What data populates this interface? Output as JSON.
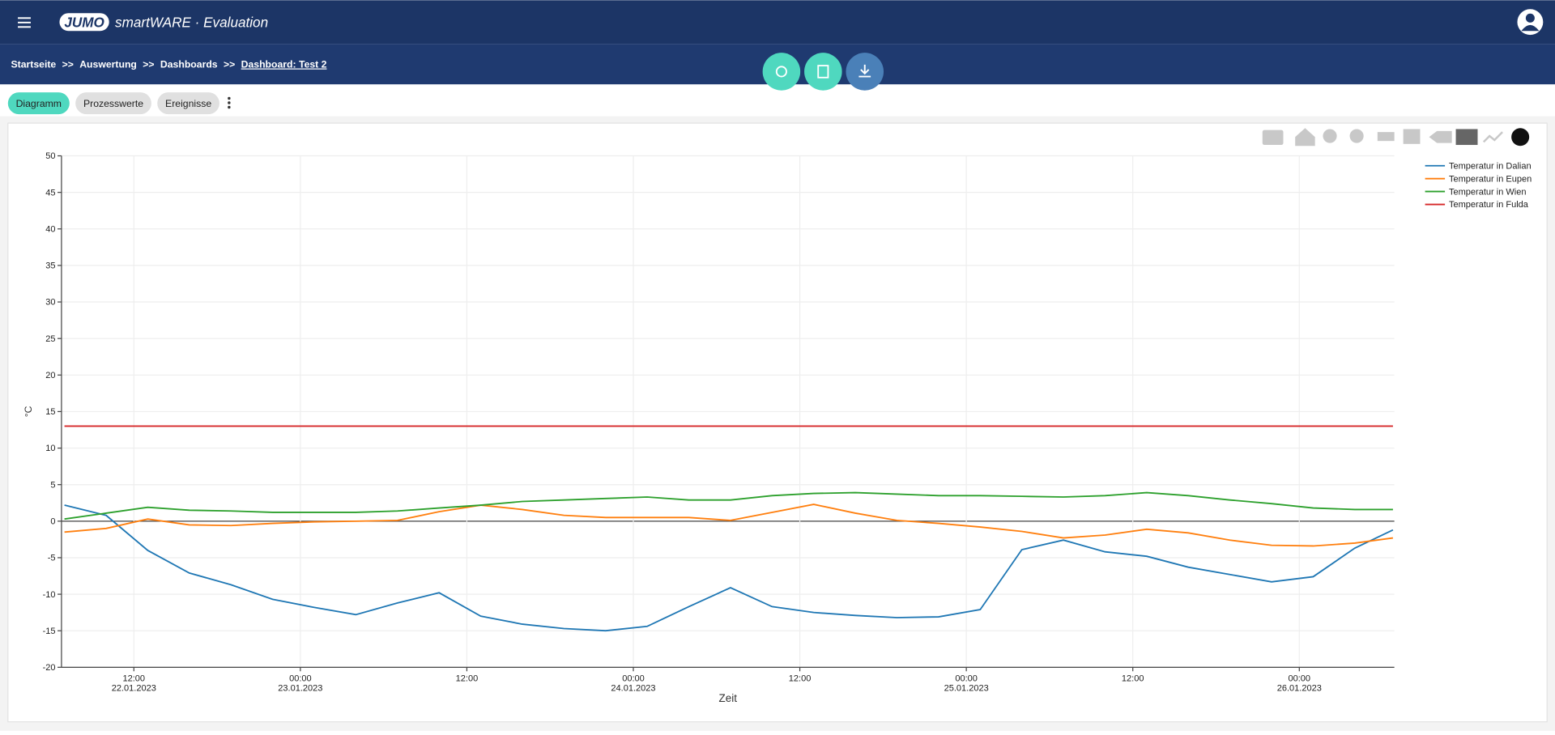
{
  "header": {
    "logo": "JUMO",
    "app_title": "smartWARE · Evaluation"
  },
  "breadcrumbs": {
    "items": [
      "Startseite",
      "Auswertung",
      "Dashboards",
      "Dashboard: Test 2"
    ],
    "separator": ">>"
  },
  "tabs": [
    "Diagramm",
    "Prozesswerte",
    "Ereignisse"
  ],
  "chart_data": {
    "type": "line",
    "x_label": "Zeit",
    "y_label": "°C",
    "grid": true,
    "legend": "top-right",
    "x": [
      "2023-01-22T07:00",
      "2023-01-22T10:00",
      "2023-01-22T13:00",
      "2023-01-22T16:00",
      "2023-01-22T19:00",
      "2023-01-22T22:00",
      "2023-01-23T01:00",
      "2023-01-23T04:00",
      "2023-01-23T07:00",
      "2023-01-23T10:00",
      "2023-01-23T13:00",
      "2023-01-23T16:00",
      "2023-01-23T19:00",
      "2023-01-23T22:00",
      "2023-01-24T01:00",
      "2023-01-24T04:00",
      "2023-01-24T07:00",
      "2023-01-24T10:00",
      "2023-01-24T13:00",
      "2023-01-24T16:00",
      "2023-01-24T19:00",
      "2023-01-24T22:00",
      "2023-01-25T01:00",
      "2023-01-25T04:00",
      "2023-01-25T07:00",
      "2023-01-25T10:00",
      "2023-01-25T13:00",
      "2023-01-25T16:00",
      "2023-01-25T19:00",
      "2023-01-25T22:00",
      "2023-01-26T01:00",
      "2023-01-26T04:00",
      "2023-01-26T06:45"
    ],
    "xlim": [
      "2023-01-22T06:47",
      "2023-01-26T06:51"
    ],
    "xticks": [
      {
        "value": "2023-01-22T12:00",
        "label": "12:00",
        "sublabel": "22.01.2023"
      },
      {
        "value": "2023-01-23T00:00",
        "label": "00:00",
        "sublabel": "23.01.2023"
      },
      {
        "value": "2023-01-23T12:00",
        "label": "12:00"
      },
      {
        "value": "2023-01-24T00:00",
        "label": "00:00",
        "sublabel": "24.01.2023"
      },
      {
        "value": "2023-01-24T12:00",
        "label": "12:00"
      },
      {
        "value": "2023-01-25T00:00",
        "label": "00:00",
        "sublabel": "25.01.2023"
      },
      {
        "value": "2023-01-25T12:00",
        "label": "12:00"
      },
      {
        "value": "2023-01-26T00:00",
        "label": "00:00",
        "sublabel": "26.01.2023"
      }
    ],
    "ylim": [
      -20,
      50
    ],
    "yticks": [
      -20,
      -15,
      -10,
      -5,
      0,
      5,
      10,
      15,
      20,
      25,
      30,
      35,
      40,
      45,
      50
    ],
    "series": [
      {
        "name": "Temperatur in Dalian",
        "color": "#1f77b4",
        "values": [
          2.2,
          0.8,
          -4,
          -7.1,
          -8.7,
          -10.7,
          -11.8,
          -12.8,
          -11.2,
          -9.8,
          -13,
          -14.1,
          -14.7,
          -15,
          -14.4,
          -11.7,
          -9.1,
          -11.7,
          -12.5,
          -12.9,
          -13.2,
          -13.1,
          -12.1,
          -3.9,
          -2.6,
          -4.2,
          -4.8,
          -6.3,
          -7.3,
          -8.3,
          -7.6,
          -3.7,
          -1.2
        ]
      },
      {
        "name": "Temperatur in Eupen",
        "color": "#ff7f0e",
        "values": [
          -1.5,
          -1,
          0.3,
          -0.5,
          -0.6,
          -0.3,
          -0.1,
          0,
          0.1,
          1.3,
          2.2,
          1.6,
          0.8,
          0.5,
          0.5,
          0.5,
          0.1,
          1.2,
          2.3,
          1.1,
          0.1,
          -0.3,
          -0.8,
          -1.4,
          -2.3,
          -1.9,
          -1.1,
          -1.6,
          -2.6,
          -3.3,
          -3.4,
          -3,
          -2.3
        ]
      },
      {
        "name": "Temperatur in Wien",
        "color": "#2ca02c",
        "values": [
          0.3,
          1.1,
          1.9,
          1.5,
          1.4,
          1.2,
          1.2,
          1.2,
          1.4,
          1.8,
          2.2,
          2.7,
          2.9,
          3.1,
          3.3,
          2.9,
          2.9,
          3.5,
          3.8,
          3.9,
          3.7,
          3.5,
          3.5,
          3.4,
          3.3,
          3.5,
          3.9,
          3.5,
          2.9,
          2.4,
          1.8,
          1.6,
          1.6
        ]
      },
      {
        "name": "Temperatur in Fulda",
        "color": "#d62728",
        "values": [
          13,
          13,
          13,
          13,
          13,
          13,
          13,
          13,
          13,
          13,
          13,
          13,
          13,
          13,
          13,
          13,
          13,
          13,
          13,
          13,
          13,
          13,
          13,
          13,
          13,
          13,
          13,
          13,
          13,
          13,
          13,
          13,
          13
        ]
      }
    ]
  }
}
